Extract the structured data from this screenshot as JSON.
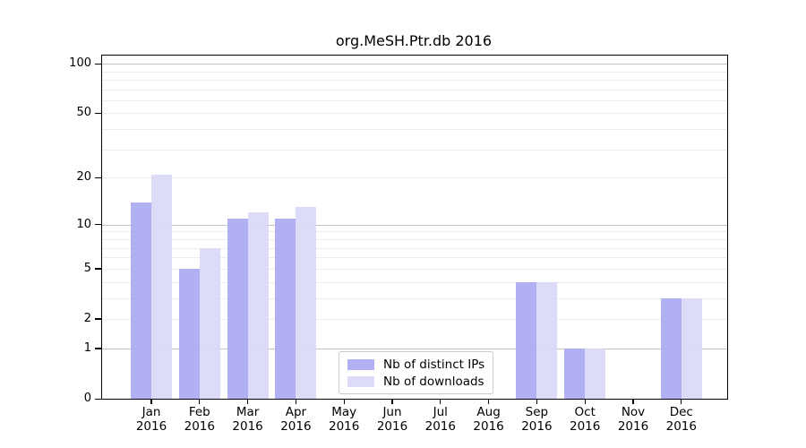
{
  "title": "org.MeSH.Ptr.db 2016",
  "legend": {
    "items": [
      {
        "label": "Nb of distinct IPs",
        "color": "#a9a9f1"
      },
      {
        "label": "Nb of downloads",
        "color": "#d9d9f9"
      }
    ]
  },
  "y_axis": {
    "tick_labels": [
      "100",
      "50",
      "20",
      "10",
      "5",
      "2",
      "1",
      "0"
    ]
  },
  "x_axis": {
    "months": [
      "Jan",
      "Feb",
      "Mar",
      "Apr",
      "May",
      "Jun",
      "Jul",
      "Aug",
      "Sep",
      "Oct",
      "Nov",
      "Dec"
    ],
    "year": "2016"
  },
  "chart_data": {
    "type": "bar",
    "title": "org.MeSH.Ptr.db 2016",
    "categories": [
      "Jan 2016",
      "Feb 2016",
      "Mar 2016",
      "Apr 2016",
      "May 2016",
      "Jun 2016",
      "Jul 2016",
      "Aug 2016",
      "Sep 2016",
      "Oct 2016",
      "Nov 2016",
      "Dec 2016"
    ],
    "series": [
      {
        "name": "Nb of distinct IPs",
        "color": "#a9a9f1",
        "values": [
          14,
          5,
          11,
          11,
          0,
          0,
          0,
          0,
          4,
          1,
          0,
          3
        ]
      },
      {
        "name": "Nb of downloads",
        "color": "#d9d9f9",
        "values": [
          21,
          7,
          12,
          13,
          0,
          0,
          0,
          0,
          4,
          1,
          0,
          3
        ]
      }
    ],
    "xlabel": "",
    "ylabel": "",
    "yscale": "log1p",
    "ylim": [
      0,
      112
    ],
    "yticks": [
      0,
      1,
      2,
      5,
      10,
      20,
      50,
      100
    ],
    "grid": "horizontal",
    "grid_major_values": [
      1,
      10,
      100
    ],
    "grid_minor_values": [
      2,
      3,
      4,
      5,
      6,
      7,
      8,
      9,
      20,
      30,
      40,
      50,
      60,
      70,
      80,
      90
    ],
    "legend_position": "lower center inside"
  },
  "colors": {
    "axis": "#000000",
    "grid_major": "#c2c2c2",
    "grid_minor": "#ececec",
    "background": "#ffffff"
  }
}
